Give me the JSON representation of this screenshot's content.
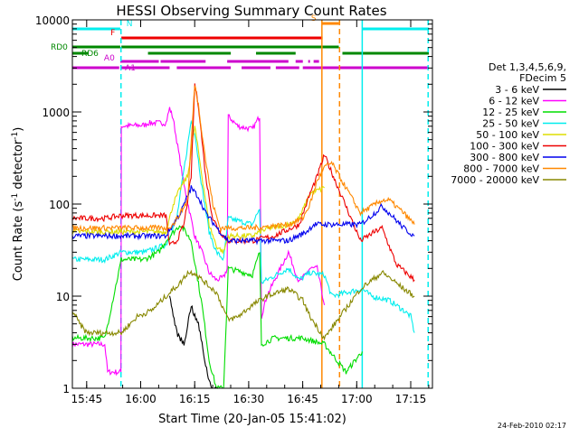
{
  "chart_data": {
    "type": "line",
    "title": "HESSI Observing Summary Count Rates",
    "xlabel": "Start Time (20-Jan-05 15:41:02)",
    "ylabel_main": "Count Rate (s",
    "ylabel_sup1": "-1",
    "ylabel_mid": " detector",
    "ylabel_sup2": "-1",
    "ylabel_end": ")",
    "yscale": "log",
    "ylim": [
      1,
      10000
    ],
    "xlim_minutes": [
      0,
      100
    ],
    "x_ticks": [
      {
        "label": "15:45",
        "minute": 3.97
      },
      {
        "label": "16:00",
        "minute": 18.97
      },
      {
        "label": "16:15",
        "minute": 33.97
      },
      {
        "label": "16:30",
        "minute": 48.97
      },
      {
        "label": "16:45",
        "minute": 63.97
      },
      {
        "label": "17:00",
        "minute": 78.97
      },
      {
        "label": "17:15",
        "minute": 93.97
      }
    ],
    "y_ticks": [
      {
        "label": "1",
        "value": 1
      },
      {
        "label": "10",
        "value": 10
      },
      {
        "label": "100",
        "value": 100
      },
      {
        "label": "1000",
        "value": 1000
      },
      {
        "label": "10000",
        "value": 10000
      }
    ],
    "legend": {
      "placement": "right",
      "header": [
        "Det 1,3,4,5,6,9,",
        "FDecim 5"
      ],
      "entries": [
        {
          "label": "3 - 6 keV",
          "color": "#000000"
        },
        {
          "label": "6 - 12 keV",
          "color": "#ff00ff"
        },
        {
          "label": "12 - 25 keV",
          "color": "#00dd00"
        },
        {
          "label": "25 - 50 keV",
          "color": "#00eeee"
        },
        {
          "label": "50 - 100 keV",
          "color": "#dddd00"
        },
        {
          "label": "100 - 300 keV",
          "color": "#ee0000"
        },
        {
          "label": "300 - 800 keV",
          "color": "#0000ee"
        },
        {
          "label": "800 - 7000 keV",
          "color": "#ff8800"
        },
        {
          "label": "7000 - 20000 keV",
          "color": "#888800"
        }
      ]
    },
    "series": [
      {
        "color": "#ff00ff",
        "points": [
          [
            0,
            3
          ],
          [
            9,
            3
          ],
          [
            9.8,
            1.5
          ],
          [
            13.5,
            1.5
          ],
          [
            13.6,
            700
          ],
          [
            20,
            720
          ],
          [
            21,
            760
          ],
          [
            26,
            760
          ],
          [
            27,
            1100
          ],
          [
            28,
            850
          ],
          [
            31,
            160
          ],
          [
            34,
            45
          ],
          [
            36,
            30
          ],
          [
            38,
            18
          ],
          [
            40,
            15
          ],
          [
            42,
            16
          ],
          [
            43,
            20
          ],
          [
            43.3,
            900
          ],
          [
            46,
            700
          ],
          [
            50,
            650
          ],
          [
            52,
            900
          ],
          [
            52.5,
            6
          ],
          [
            54,
            10
          ],
          [
            60,
            30
          ],
          [
            63,
            14
          ],
          [
            66,
            20
          ],
          [
            68,
            20
          ],
          [
            70,
            8
          ]
        ]
      },
      {
        "color": "#00eeee",
        "points": [
          [
            0,
            25
          ],
          [
            9,
            25
          ],
          [
            13.6,
            30
          ],
          [
            20,
            30
          ],
          [
            26,
            36
          ],
          [
            29,
            70
          ],
          [
            33,
            800
          ],
          [
            34,
            600
          ],
          [
            36,
            150
          ],
          [
            38,
            50
          ],
          [
            40,
            30
          ],
          [
            42,
            25
          ],
          [
            43.3,
            70
          ],
          [
            50,
            60
          ],
          [
            52,
            90
          ],
          [
            52.5,
            14
          ],
          [
            60,
            20
          ],
          [
            63,
            15
          ],
          [
            66,
            18
          ],
          [
            70,
            17
          ],
          [
            72,
            10
          ],
          [
            80.5,
            12
          ],
          [
            83,
            10
          ],
          [
            88,
            9
          ],
          [
            92,
            7
          ],
          [
            94,
            6
          ],
          [
            95,
            4
          ]
        ]
      },
      {
        "color": "#00dd00",
        "points": [
          [
            0,
            3.5
          ],
          [
            9,
            3.5
          ],
          [
            13.6,
            25
          ],
          [
            20,
            25
          ],
          [
            24,
            30
          ],
          [
            26,
            40
          ],
          [
            30,
            60
          ],
          [
            33,
            40
          ],
          [
            36,
            8
          ],
          [
            38,
            2
          ],
          [
            40,
            1
          ],
          [
            42,
            1
          ],
          [
            43.3,
            20
          ],
          [
            50,
            17
          ],
          [
            52,
            30
          ],
          [
            52.5,
            3
          ],
          [
            56,
            3.5
          ],
          [
            64,
            3.5
          ],
          [
            70,
            3
          ],
          [
            76,
            1.5
          ],
          [
            80.5,
            2.5
          ]
        ]
      },
      {
        "color": "#dddd00",
        "points": [
          [
            0,
            50
          ],
          [
            9,
            50
          ],
          [
            13.6,
            50
          ],
          [
            26,
            50
          ],
          [
            28,
            100
          ],
          [
            30,
            150
          ],
          [
            32,
            200
          ],
          [
            34,
            700
          ],
          [
            36,
            200
          ],
          [
            38,
            60
          ],
          [
            40,
            35
          ],
          [
            42,
            30
          ],
          [
            43.3,
            45
          ],
          [
            50,
            45
          ],
          [
            52,
            50
          ],
          [
            55,
            55
          ],
          [
            60,
            60
          ],
          [
            63,
            70
          ],
          [
            66,
            130
          ],
          [
            70,
            150
          ]
        ]
      },
      {
        "color": "#ee0000",
        "points": [
          [
            0,
            70
          ],
          [
            9,
            70
          ],
          [
            13.6,
            75
          ],
          [
            26,
            75
          ],
          [
            27,
            35
          ],
          [
            29,
            40
          ],
          [
            31,
            60
          ],
          [
            33,
            200
          ],
          [
            34,
            2000
          ],
          [
            35,
            1200
          ],
          [
            37,
            200
          ],
          [
            39,
            70
          ],
          [
            41,
            50
          ],
          [
            43.3,
            40
          ],
          [
            50,
            40
          ],
          [
            56,
            45
          ],
          [
            63,
            60
          ],
          [
            66,
            130
          ],
          [
            68,
            200
          ],
          [
            70,
            340
          ],
          [
            80,
            40
          ],
          [
            84,
            50
          ],
          [
            86,
            55
          ],
          [
            90,
            22
          ],
          [
            95,
            15
          ]
        ]
      },
      {
        "color": "#0000ee",
        "points": [
          [
            0,
            45
          ],
          [
            9,
            45
          ],
          [
            13.6,
            45
          ],
          [
            26,
            45
          ],
          [
            28,
            60
          ],
          [
            30,
            80
          ],
          [
            33,
            150
          ],
          [
            35,
            120
          ],
          [
            37,
            80
          ],
          [
            41,
            50
          ],
          [
            43.3,
            40
          ],
          [
            50,
            40
          ],
          [
            60,
            40
          ],
          [
            65,
            50
          ],
          [
            67,
            60
          ],
          [
            70,
            60
          ],
          [
            80,
            60
          ],
          [
            84,
            80
          ],
          [
            86,
            95
          ],
          [
            88,
            80
          ],
          [
            92,
            55
          ],
          [
            95,
            45
          ]
        ]
      },
      {
        "color": "#ff8800",
        "points": [
          [
            0,
            55
          ],
          [
            9,
            55
          ],
          [
            13.6,
            55
          ],
          [
            26,
            55
          ],
          [
            28,
            60
          ],
          [
            30,
            80
          ],
          [
            32,
            110
          ],
          [
            34,
            2000
          ],
          [
            35,
            1200
          ],
          [
            37,
            300
          ],
          [
            39,
            100
          ],
          [
            41,
            55
          ],
          [
            43.3,
            55
          ],
          [
            50,
            55
          ],
          [
            60,
            60
          ],
          [
            64,
            70
          ],
          [
            66,
            100
          ],
          [
            68,
            180
          ],
          [
            70,
            250
          ],
          [
            72,
            280
          ],
          [
            80,
            80
          ],
          [
            86,
            110
          ],
          [
            88,
            110
          ],
          [
            92,
            80
          ],
          [
            95,
            60
          ]
        ]
      },
      {
        "color": "#888800",
        "points": [
          [
            0,
            7
          ],
          [
            2,
            5
          ],
          [
            4,
            4
          ],
          [
            9,
            4
          ],
          [
            13.6,
            4
          ],
          [
            18,
            6
          ],
          [
            22,
            7
          ],
          [
            26,
            10
          ],
          [
            30,
            14
          ],
          [
            32,
            18
          ],
          [
            34,
            18
          ],
          [
            36,
            15
          ],
          [
            40,
            11
          ],
          [
            43.3,
            5.5
          ],
          [
            46,
            6
          ],
          [
            50,
            8
          ],
          [
            54,
            10
          ],
          [
            60,
            12
          ],
          [
            64,
            9
          ],
          [
            66,
            6
          ],
          [
            70,
            3.5
          ],
          [
            80,
            12
          ],
          [
            86,
            18
          ],
          [
            88,
            16
          ],
          [
            92,
            12
          ],
          [
            95,
            10
          ]
        ]
      },
      {
        "color": "#000000",
        "points": [
          [
            27,
            10
          ],
          [
            29,
            4
          ],
          [
            31,
            3
          ],
          [
            33,
            8
          ],
          [
            34,
            6
          ],
          [
            35,
            5
          ],
          [
            36,
            3
          ],
          [
            37,
            1.8
          ],
          [
            38,
            1.2
          ],
          [
            39,
            1
          ],
          [
            40,
            1
          ]
        ]
      }
    ],
    "observing_states": [
      {
        "label": "N",
        "color": "#00eeee",
        "y": 10,
        "segments": [
          [
            0,
            13.3
          ],
          [
            80.5,
            99
          ]
        ]
      },
      {
        "label": "F",
        "color": "#ee0000",
        "y": 20,
        "segments": [
          [
            13.6,
            69.5
          ]
        ]
      },
      {
        "label": "S",
        "color": "#ff8800",
        "y": 4,
        "segments": [
          [
            69.3,
            74
          ]
        ]
      },
      {
        "label": "RD0",
        "color": "#008800",
        "y": 30,
        "segments": [
          [
            0,
            13.3
          ],
          [
            13.6,
            74
          ]
        ]
      },
      {
        "label": "RD6",
        "color": "#008800",
        "y": 37,
        "segments": [
          [
            0,
            4.5
          ],
          [
            21,
            44
          ],
          [
            51,
            62
          ],
          [
            75,
            99
          ]
        ]
      },
      {
        "label": "A0",
        "color": "#cc00cc",
        "y": 46,
        "segments": [
          [
            13.3,
            24
          ],
          [
            24.5,
            37
          ],
          [
            43,
            60
          ],
          [
            62,
            64
          ],
          [
            65.5,
            66
          ],
          [
            67,
            68.5
          ]
        ]
      },
      {
        "label": "A1",
        "color": "#cc00cc",
        "y": 53,
        "segments": [
          [
            0,
            13
          ],
          [
            13.6,
            27
          ],
          [
            29,
            44
          ],
          [
            47,
            55
          ],
          [
            56.5,
            63
          ],
          [
            64,
            99
          ]
        ]
      }
    ],
    "vertical_markers": [
      {
        "minute": 13.5,
        "color": "#00eeee",
        "dashed": true
      },
      {
        "minute": 69.3,
        "color": "#ff8800",
        "dashed": false
      },
      {
        "minute": 74.2,
        "color": "#ff8800",
        "dashed": true
      },
      {
        "minute": 80.5,
        "color": "#00eeee",
        "dashed": false
      },
      {
        "minute": 98.8,
        "color": "#00eeee",
        "dashed": true
      }
    ]
  },
  "timestamp": "24-Feb-2010 02:17"
}
